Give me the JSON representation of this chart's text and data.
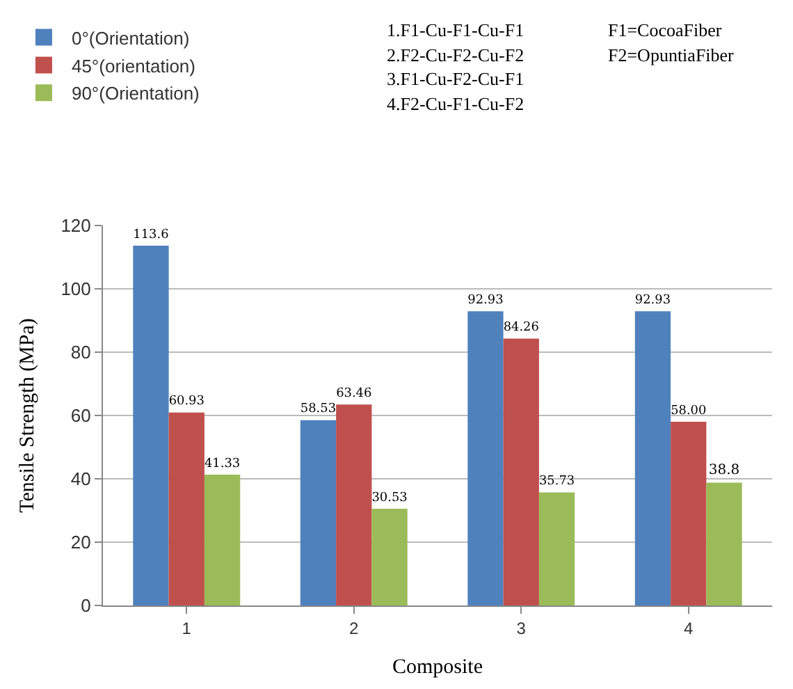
{
  "chart_data": {
    "type": "bar",
    "xlabel": "Composite",
    "ylabel": "Tensile Strength (MPa)",
    "categories": [
      "1",
      "2",
      "3",
      "4"
    ],
    "series": [
      {
        "name": "0°(Orientation)",
        "color": "#4f81bd",
        "values": [
          113.6,
          58.53,
          92.93,
          92.93
        ],
        "value_labels": [
          "113.6",
          "58.53",
          "92.93",
          "92.93"
        ]
      },
      {
        "name": "45°(orientation)",
        "color": "#c0504d",
        "values": [
          60.93,
          63.46,
          84.26,
          58.0
        ],
        "value_labels": [
          "60.93",
          "63.46",
          "84.26",
          "58.00"
        ]
      },
      {
        "name": "90°(Orientation)",
        "color": "#9bbb59",
        "values": [
          41.33,
          30.53,
          35.73,
          38.8
        ],
        "value_labels": [
          "41.33",
          "30.53",
          "35.73",
          "38.8"
        ]
      }
    ],
    "ylim": [
      0,
      120
    ],
    "yticks": [
      0,
      20,
      40,
      60,
      80,
      100,
      120
    ],
    "grid": "y",
    "legend": "top left",
    "annotations": [
      "1.F1-Cu-F1-Cu-F1",
      "2.F2-Cu-F2-Cu-F2",
      "3.F1-Cu-F2-Cu-F1",
      "4.F2-Cu-F1-Cu-F2",
      "F1=CocoaFiber",
      "F2=OpuntiaFiber"
    ]
  }
}
